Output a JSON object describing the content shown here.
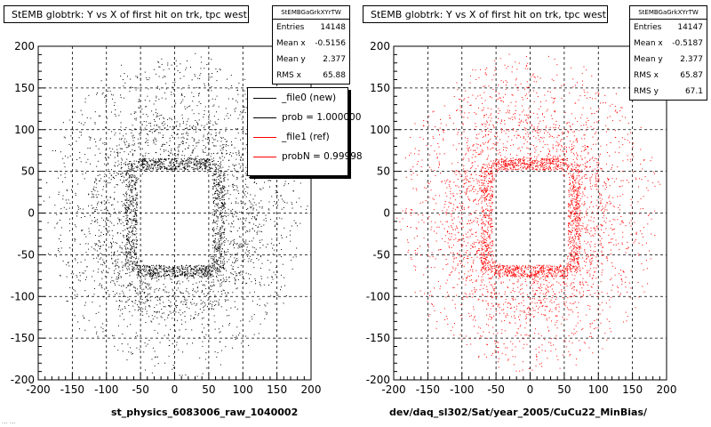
{
  "charts": [
    {
      "title": "StEMB globtrk: Y vs X of first hit on trk, tpc west",
      "xtitle": "st_physics_6083006_raw_1040002",
      "color": "#000000",
      "stats": {
        "header": "StEMBGaGrkXYrTW",
        "rows": [
          {
            "label": "Entries",
            "value": "14148"
          },
          {
            "label": "Mean x",
            "value": "-0.5156"
          },
          {
            "label": "Mean y",
            "value": "2.377"
          },
          {
            "label": "RMS x",
            "value": "65.88"
          }
        ]
      },
      "legend": [
        {
          "label": "_file0 (new)",
          "color": "#000000"
        },
        {
          "label": "prob = 1.000000",
          "color": "#000000"
        },
        {
          "label": "_file1 (ref)",
          "color": "#ff0000"
        },
        {
          "label": "probN = 0.99998",
          "color": "#ff0000"
        }
      ]
    },
    {
      "title": "StEMB globtrk: Y vs X of first hit on trk, tpc west",
      "xtitle": "dev/daq_sl302/Sat/year_2005/CuCu22_MinBias/",
      "color": "#ff0000",
      "stats": {
        "header": "StEMBGaGrkXYrTW",
        "rows": [
          {
            "label": "Entries",
            "value": "14147"
          },
          {
            "label": "Mean x",
            "value": "-0.5187"
          },
          {
            "label": "Mean y",
            "value": "2.377"
          },
          {
            "label": "RMS x",
            "value": "65.87"
          },
          {
            "label": "RMS y",
            "value": "67.1"
          }
        ]
      }
    }
  ],
  "chart_data": [
    {
      "type": "scatter",
      "xlim": [
        -200,
        200
      ],
      "ylim": [
        -200,
        200
      ],
      "xticks": [
        -200,
        -150,
        -100,
        -50,
        0,
        50,
        100,
        150,
        200
      ],
      "yticks": [
        -200,
        -150,
        -100,
        -50,
        0,
        50,
        100,
        150,
        200
      ],
      "grid": true,
      "entries": 14148,
      "mean_x": -0.5156,
      "mean_y": 2.377,
      "rms_x": 65.88,
      "dense_ring": {
        "x_range": [
          -65,
          65
        ],
        "y_range": [
          -70,
          60
        ]
      },
      "outer_ring": {
        "radius_range": [
          115,
          170
        ]
      }
    },
    {
      "type": "scatter",
      "xlim": [
        -200,
        200
      ],
      "ylim": [
        -200,
        200
      ],
      "xticks": [
        -200,
        -150,
        -100,
        -50,
        0,
        50,
        100,
        150,
        200
      ],
      "yticks": [
        -200,
        -150,
        -100,
        -50,
        0,
        50,
        100,
        150,
        200
      ],
      "grid": true,
      "entries": 14147,
      "mean_x": -0.5187,
      "mean_y": 2.377,
      "rms_x": 65.87,
      "rms_y": 67.1,
      "dense_ring": {
        "x_range": [
          -65,
          65
        ],
        "y_range": [
          -70,
          60
        ]
      },
      "outer_ring": {
        "radius_range": [
          115,
          170
        ]
      }
    }
  ],
  "footer": "... ..."
}
